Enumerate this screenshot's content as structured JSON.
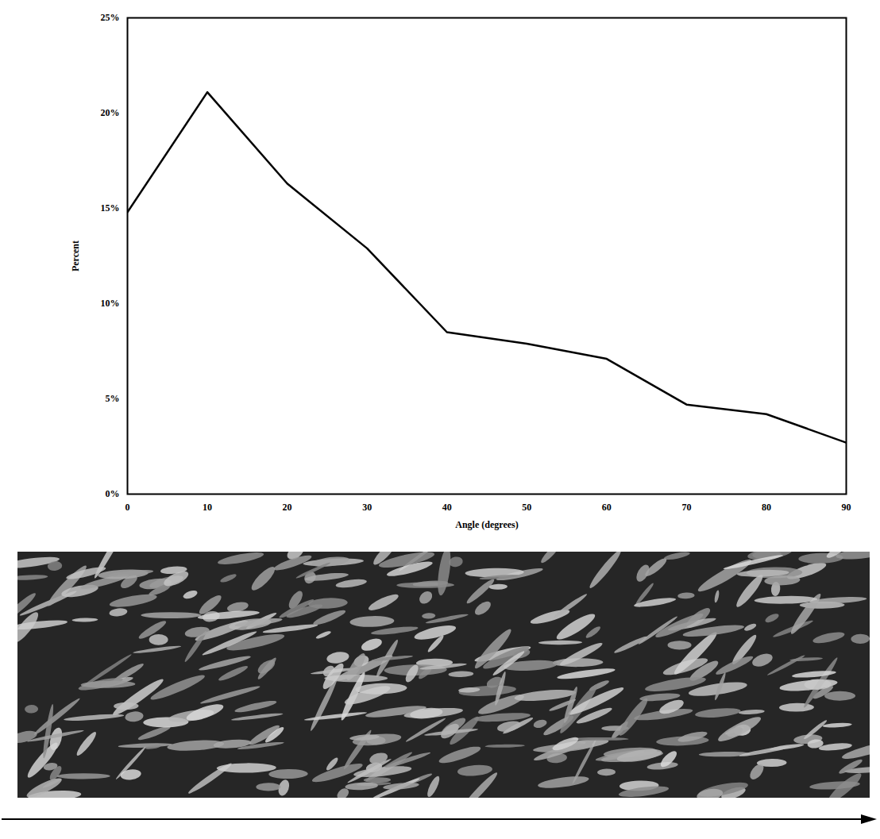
{
  "chart_data": {
    "type": "line",
    "xlabel": "Angle (degrees)",
    "ylabel": "Percent",
    "x": [
      0,
      10,
      20,
      30,
      40,
      50,
      60,
      70,
      80,
      90
    ],
    "values": [
      14.8,
      21.1,
      16.3,
      12.9,
      8.5,
      7.9,
      7.1,
      4.7,
      4.2,
      2.7
    ],
    "color": "#000000",
    "xlim": [
      0,
      90
    ],
    "xticks": [
      0,
      10,
      20,
      30,
      40,
      50,
      60,
      70,
      80,
      90
    ],
    "ylim": [
      0,
      25
    ],
    "yticks": [
      {
        "value": 0,
        "label": "0%"
      },
      {
        "value": 5,
        "label": "5%"
      },
      {
        "value": 10,
        "label": "10%"
      },
      {
        "value": 15,
        "label": "15%"
      },
      {
        "value": 20,
        "label": "20%"
      },
      {
        "value": 25,
        "label": "25%"
      }
    ],
    "grid": false
  }
}
